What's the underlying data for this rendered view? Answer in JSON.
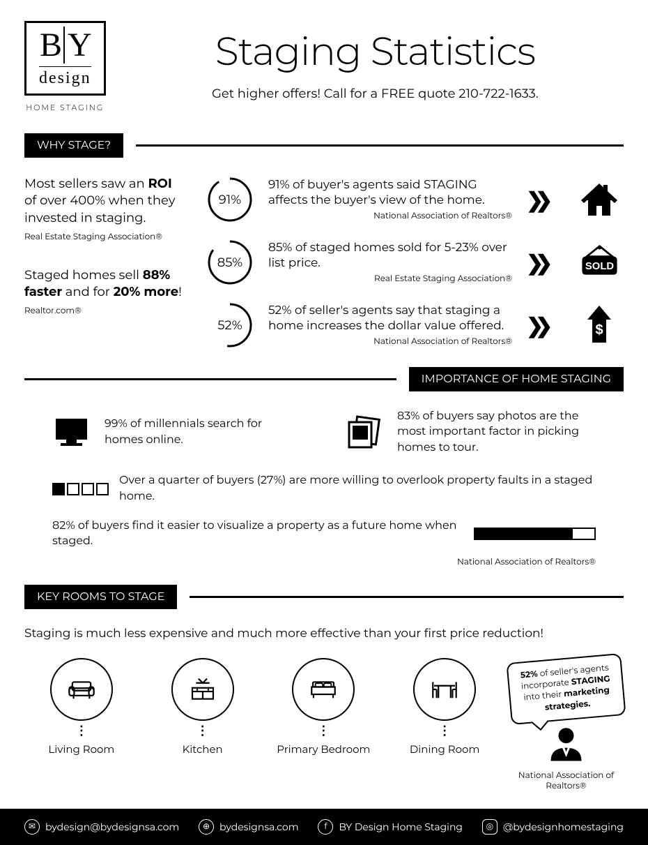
{
  "logo": {
    "b": "B",
    "y": "Y",
    "design": "design",
    "sub": "HOME STAGING"
  },
  "header": {
    "title": "Staging Statistics",
    "subtitle": "Get higher offers! Call for a FREE quote 210-722-1633."
  },
  "sections": {
    "why_stage": "WHY STAGE?",
    "importance": "IMPORTANCE  OF HOME STAGING",
    "key_rooms": "KEY ROOMS TO STAGE"
  },
  "why_left": [
    {
      "html": "Most sellers saw an <b>ROI</b> of over 400% when they invested in staging.",
      "source": "Real Estate Staging Association®"
    },
    {
      "html": "Staged homes sell <b>88% faster</b> and for <b>20% more</b>!",
      "source": "Realtor.com®"
    }
  ],
  "why_right": [
    {
      "pct": 91,
      "label": "91%",
      "text": "91% of buyer's agents said STAGING affects the buyer's view of the home.",
      "source": "National Association of Realtors®",
      "icon": "house"
    },
    {
      "pct": 85,
      "label": "85%",
      "text": "85% of staged homes sold for 5-23% over list price.",
      "source": "Real Estate Staging Association®",
      "icon": "sold"
    },
    {
      "pct": 52,
      "label": "52%",
      "text": "52% of seller's agents say that staging a home increases the dollar value offered.",
      "source": "National Association of Realtors®",
      "icon": "dollar"
    }
  ],
  "importance": {
    "row1": [
      {
        "text": "99% of millennials search for homes online.",
        "icon": "monitor"
      },
      {
        "text": "83% of buyers say photos are the most important factor in picking homes to tour.",
        "icon": "photos"
      }
    ],
    "row2_text": "Over a quarter of buyers (27%) are more willing to overlook property faults in a staged home.",
    "row2_filled": 1,
    "row2_total": 4,
    "row3_text": "82% of buyers find it easier to visualize a property as a future home when staged.",
    "row3_pct": 82,
    "source": "National Association of Realtors®"
  },
  "key_rooms": {
    "intro": "Staging is much less expensive and much more effective than your first price reduction!",
    "rooms": [
      {
        "label": "Living Room",
        "icon": "sofa"
      },
      {
        "label": "Kitchen",
        "icon": "kitchen"
      },
      {
        "label": "Primary Bedroom",
        "icon": "bed"
      },
      {
        "label": "Dining Room",
        "icon": "dining"
      }
    ],
    "speech_html": "<b>52%</b> of seller's agents incorporate <b>STAGING</b> into their <b>marketing strategies.</b>",
    "source": "National Association of Realtors®"
  },
  "footer": {
    "email": "bydesign@bydesignsa.com",
    "web": "bydesignsa.com",
    "fb": "BY Design Home Staging",
    "ig": "@bydesignhomestaging"
  },
  "colors": {
    "fg": "#000000",
    "bg": "#ffffff"
  }
}
